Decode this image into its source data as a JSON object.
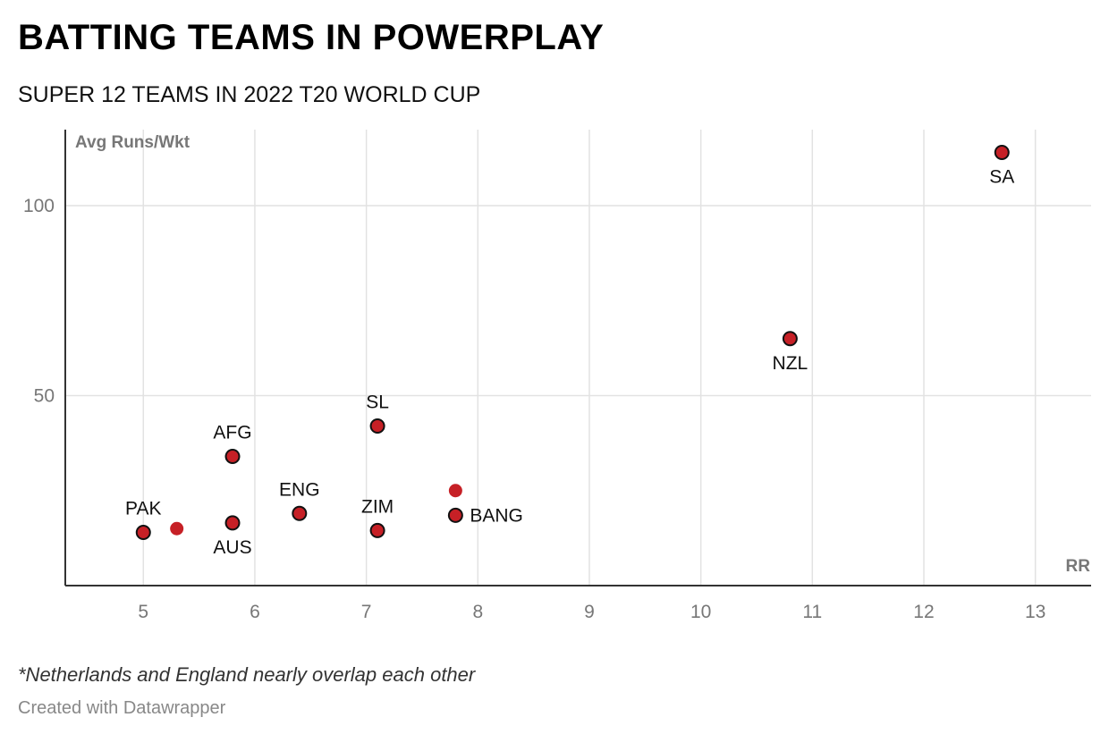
{
  "header": {
    "title": "BATTING TEAMS IN POWERPLAY",
    "subtitle": "SUPER 12 TEAMS IN 2022 T20 WORLD CUP"
  },
  "footer": {
    "note": "*Netherlands and England nearly overlap each other",
    "credit": "Created with Datawrapper"
  },
  "colors": {
    "point": "#c62026",
    "grid": "#e2e2e2",
    "axis": "#333333"
  },
  "chart_data": {
    "type": "scatter",
    "xlabel": "RR",
    "ylabel": "Avg Runs/Wkt",
    "xlim": [
      4.3,
      13.5
    ],
    "ylim": [
      0,
      120
    ],
    "xticks": [
      5,
      6,
      7,
      8,
      9,
      10,
      11,
      12,
      13
    ],
    "yticks": [
      50,
      100
    ],
    "grid": true,
    "points": [
      {
        "label": "PAK",
        "x": 5.0,
        "y": 14,
        "outlined": true,
        "label_pos": "above"
      },
      {
        "label": "",
        "x": 5.3,
        "y": 15,
        "outlined": false,
        "label_pos": "none"
      },
      {
        "label": "AUS",
        "x": 5.8,
        "y": 16.5,
        "outlined": true,
        "label_pos": "below"
      },
      {
        "label": "AFG",
        "x": 5.8,
        "y": 34,
        "outlined": true,
        "label_pos": "above"
      },
      {
        "label": "ENG",
        "x": 6.4,
        "y": 19,
        "outlined": true,
        "label_pos": "above"
      },
      {
        "label": "ZIM",
        "x": 7.1,
        "y": 14.5,
        "outlined": true,
        "label_pos": "above"
      },
      {
        "label": "SL",
        "x": 7.1,
        "y": 42,
        "outlined": true,
        "label_pos": "above"
      },
      {
        "label": "",
        "x": 7.8,
        "y": 25,
        "outlined": false,
        "label_pos": "none"
      },
      {
        "label": "BANG",
        "x": 7.8,
        "y": 18.5,
        "outlined": true,
        "label_pos": "right"
      },
      {
        "label": "NZL",
        "x": 10.8,
        "y": 65,
        "outlined": true,
        "label_pos": "below"
      },
      {
        "label": "SA",
        "x": 12.7,
        "y": 114,
        "outlined": true,
        "label_pos": "below"
      }
    ]
  }
}
